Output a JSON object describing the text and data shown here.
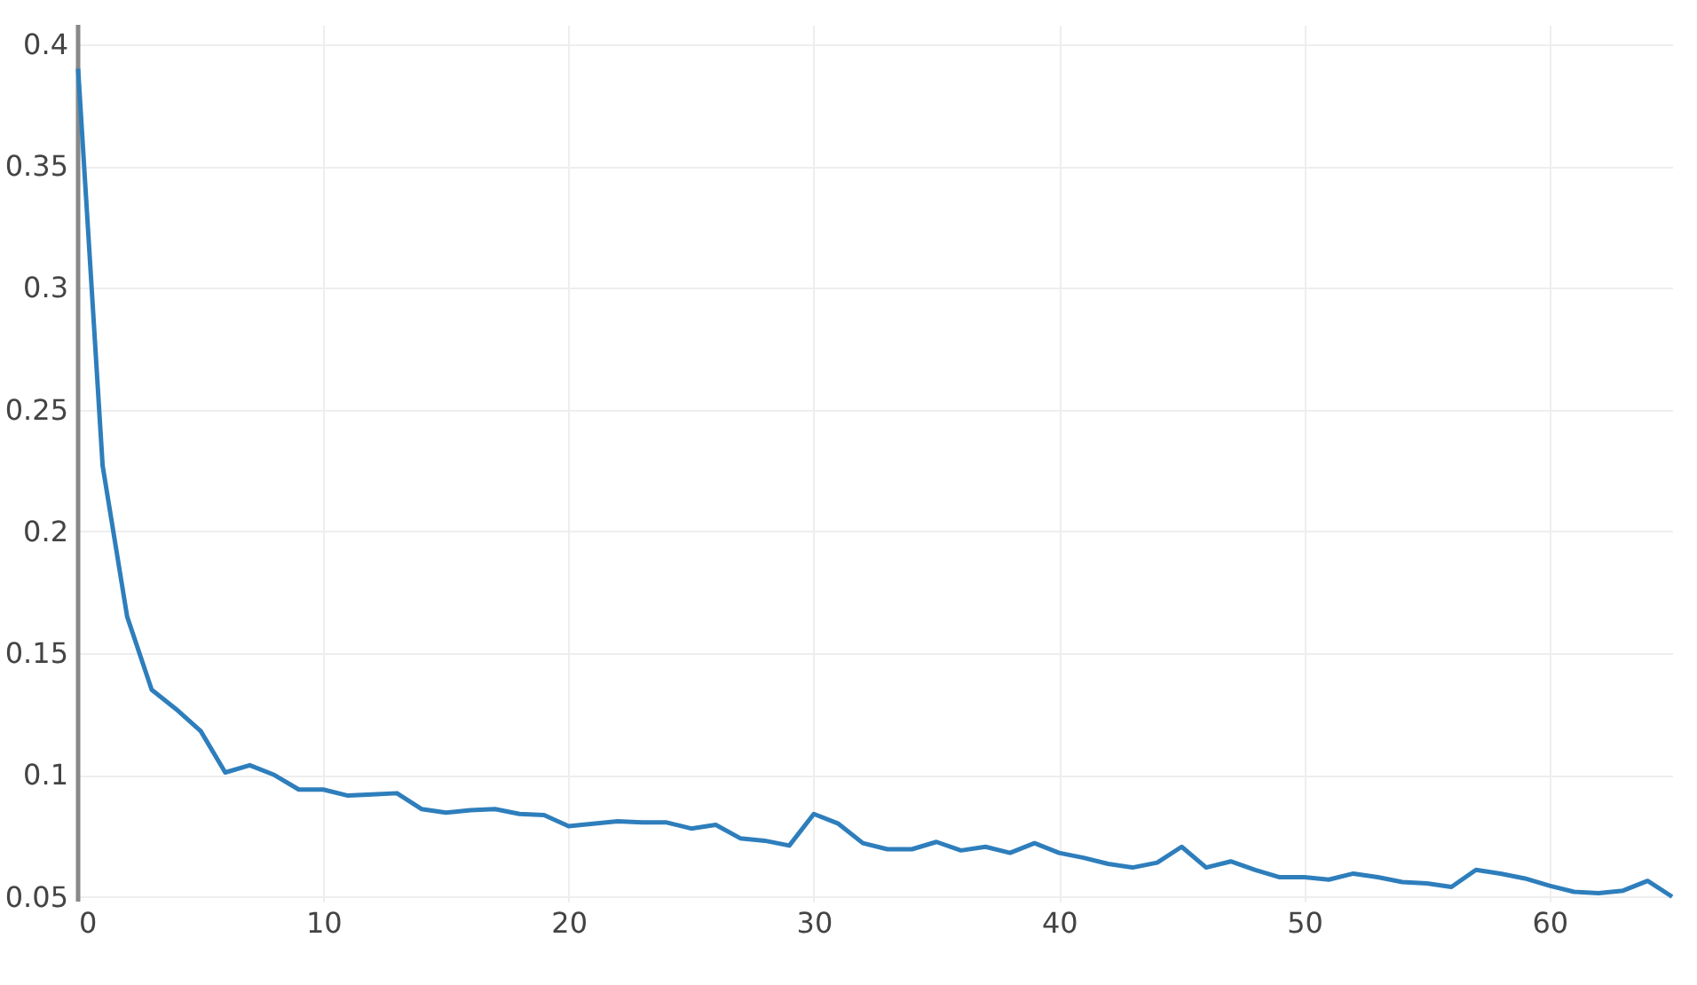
{
  "chart_data": {
    "type": "line",
    "x": [
      0,
      1,
      2,
      3,
      4,
      5,
      6,
      7,
      8,
      9,
      10,
      11,
      12,
      13,
      14,
      15,
      16,
      17,
      18,
      19,
      20,
      21,
      22,
      23,
      24,
      25,
      26,
      27,
      28,
      29,
      30,
      31,
      32,
      33,
      34,
      35,
      36,
      37,
      38,
      39,
      40,
      41,
      42,
      43,
      44,
      45,
      46,
      47,
      48,
      49,
      50,
      51,
      52,
      53,
      54,
      55,
      56,
      57,
      58,
      59,
      60,
      61,
      62,
      63,
      64,
      65
    ],
    "series": [
      {
        "color": "#2e7ebc",
        "values": [
          0.39,
          0.227,
          0.165,
          0.135,
          0.127,
          0.118,
          0.101,
          0.104,
          0.1,
          0.094,
          0.094,
          0.0915,
          0.092,
          0.0925,
          0.086,
          0.0845,
          0.0855,
          0.086,
          0.084,
          0.0835,
          0.079,
          0.08,
          0.081,
          0.0805,
          0.0805,
          0.078,
          0.0795,
          0.074,
          0.073,
          0.071,
          0.084,
          0.08,
          0.072,
          0.0695,
          0.0695,
          0.0725,
          0.069,
          0.0705,
          0.068,
          0.072,
          0.068,
          0.066,
          0.0635,
          0.062,
          0.064,
          0.0705,
          0.062,
          0.0645,
          0.061,
          0.058,
          0.058,
          0.057,
          0.0595,
          0.058,
          0.056,
          0.0555,
          0.054,
          0.061,
          0.0595,
          0.0575,
          0.0545,
          0.052,
          0.0515,
          0.0525,
          0.0565,
          0.05
        ]
      }
    ],
    "xlim": [
      0,
      65
    ],
    "ylim": [
      0.048,
      0.408
    ],
    "xticks": [
      0,
      10,
      20,
      30,
      40,
      50,
      60
    ],
    "yticks": [
      0.05,
      0.1,
      0.15,
      0.2,
      0.25,
      0.3,
      0.35,
      0.4
    ],
    "grid": true,
    "line_style": "solid",
    "marker": "none"
  }
}
